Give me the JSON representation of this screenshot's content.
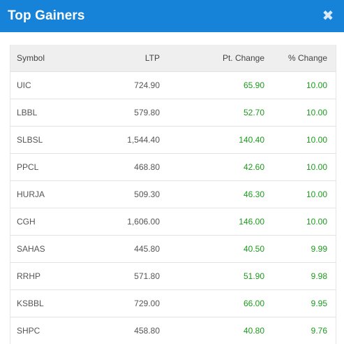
{
  "modal": {
    "title": "Top Gainers",
    "close_icon": "close-icon",
    "accent_color": "#1683d8",
    "gain_color": "#1c9a1c"
  },
  "table": {
    "headers": {
      "symbol": "Symbol",
      "ltp": "LTP",
      "pt_change": "Pt. Change",
      "pct_change": "% Change"
    },
    "rows": [
      {
        "symbol": "UIC",
        "ltp": "724.90",
        "pt_change": "65.90",
        "pct_change": "10.00"
      },
      {
        "symbol": "LBBL",
        "ltp": "579.80",
        "pt_change": "52.70",
        "pct_change": "10.00"
      },
      {
        "symbol": "SLBSL",
        "ltp": "1,544.40",
        "pt_change": "140.40",
        "pct_change": "10.00"
      },
      {
        "symbol": "PPCL",
        "ltp": "468.80",
        "pt_change": "42.60",
        "pct_change": "10.00"
      },
      {
        "symbol": "HURJA",
        "ltp": "509.30",
        "pt_change": "46.30",
        "pct_change": "10.00"
      },
      {
        "symbol": "CGH",
        "ltp": "1,606.00",
        "pt_change": "146.00",
        "pct_change": "10.00"
      },
      {
        "symbol": "SAHAS",
        "ltp": "445.80",
        "pt_change": "40.50",
        "pct_change": "9.99"
      },
      {
        "symbol": "RRHP",
        "ltp": "571.80",
        "pt_change": "51.90",
        "pct_change": "9.98"
      },
      {
        "symbol": "KSBBL",
        "ltp": "729.00",
        "pt_change": "66.00",
        "pct_change": "9.95"
      },
      {
        "symbol": "SHPC",
        "ltp": "458.80",
        "pt_change": "40.80",
        "pct_change": "9.76"
      }
    ]
  }
}
